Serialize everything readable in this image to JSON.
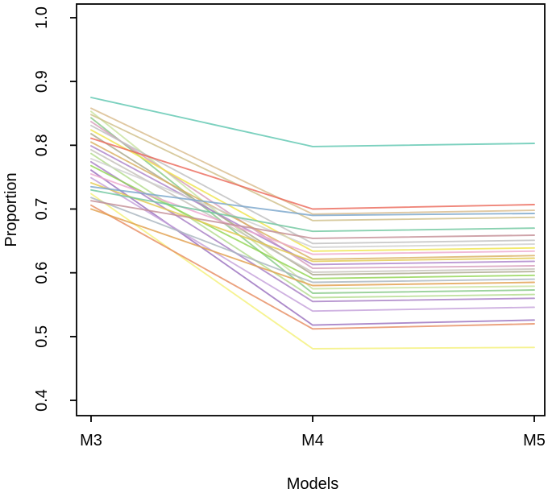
{
  "figure": {
    "background": "#ffffff",
    "axis_color": "#000000"
  },
  "chart_data": {
    "type": "line",
    "title": "",
    "xlabel": "Models",
    "ylabel": "Proportion",
    "categories": [
      "M3",
      "M4",
      "M5"
    ],
    "ylim": [
      0.4,
      1.0
    ],
    "yticks": [
      0.4,
      0.5,
      0.6,
      0.7,
      0.8,
      0.9,
      1.0
    ],
    "ytick_labels": [
      "0.4",
      "0.5",
      "0.6",
      "0.7",
      "0.8",
      "0.9",
      "1.0"
    ],
    "grid": false,
    "legend": "none",
    "series": [
      {
        "name": "line-teal",
        "color": "#5fc7b1",
        "values": [
          0.875,
          0.798,
          0.803
        ]
      },
      {
        "name": "line-tan",
        "color": "#d9bc8e",
        "values": [
          0.858,
          0.692,
          0.698
        ]
      },
      {
        "name": "line-palegreen",
        "color": "#c9e3a0",
        "values": [
          0.853,
          0.575,
          0.579
        ]
      },
      {
        "name": "line-khaki",
        "color": "#cfc08a",
        "values": [
          0.848,
          0.682,
          0.687
        ]
      },
      {
        "name": "line-green",
        "color": "#87c987",
        "values": [
          0.843,
          0.568,
          0.573
        ]
      },
      {
        "name": "line-mauvepink",
        "color": "#d79dbb",
        "values": [
          0.837,
          0.607,
          0.611
        ]
      },
      {
        "name": "line-gray",
        "color": "#bfbfbf",
        "values": [
          0.831,
          0.646,
          0.651
        ]
      },
      {
        "name": "line-yellow",
        "color": "#efe44d",
        "values": [
          0.824,
          0.634,
          0.639
        ]
      },
      {
        "name": "line-olivegray",
        "color": "#aba88c",
        "values": [
          0.818,
          0.597,
          0.602
        ]
      },
      {
        "name": "line-salmonred",
        "color": "#ec6a5c",
        "values": [
          0.811,
          0.7,
          0.707
        ]
      },
      {
        "name": "line-tangold",
        "color": "#d9b163",
        "values": [
          0.805,
          0.621,
          0.627
        ]
      },
      {
        "name": "line-purple",
        "color": "#ac84cb",
        "values": [
          0.799,
          0.613,
          0.618
        ]
      },
      {
        "name": "line-warmgray",
        "color": "#c6c2bb",
        "values": [
          0.793,
          0.601,
          0.606
        ]
      },
      {
        "name": "line-lightgreen",
        "color": "#b3dc8e",
        "values": [
          0.787,
          0.561,
          0.566
        ]
      },
      {
        "name": "line-lightgray",
        "color": "#cfcfcf",
        "values": [
          0.779,
          0.64,
          0.645
        ]
      },
      {
        "name": "line-purple2",
        "color": "#a77fc4",
        "values": [
          0.774,
          0.555,
          0.56
        ]
      },
      {
        "name": "line-brightgreen",
        "color": "#93d653",
        "values": [
          0.768,
          0.591,
          0.596
        ]
      },
      {
        "name": "line-violet",
        "color": "#9a70be",
        "values": [
          0.761,
          0.518,
          0.526
        ]
      },
      {
        "name": "line-pink",
        "color": "#eda8ce",
        "values": [
          0.755,
          0.629,
          0.634
        ]
      },
      {
        "name": "line-lavender",
        "color": "#c5a1db",
        "values": [
          0.749,
          0.54,
          0.546
        ]
      },
      {
        "name": "line-gold",
        "color": "#e3c94f",
        "values": [
          0.741,
          0.618,
          0.623
        ]
      },
      {
        "name": "line-steelblue",
        "color": "#7aa6cc",
        "values": [
          0.735,
          0.69,
          0.693
        ]
      },
      {
        "name": "line-seagreen",
        "color": "#6fc79f",
        "values": [
          0.73,
          0.665,
          0.67
        ]
      },
      {
        "name": "line-lightyellow",
        "color": "#f4f07a",
        "values": [
          0.724,
          0.481,
          0.483
        ]
      },
      {
        "name": "line-bluegray",
        "color": "#a9b6bf",
        "values": [
          0.718,
          0.585,
          0.59
        ]
      },
      {
        "name": "line-rosybrown",
        "color": "#c58f96",
        "values": [
          0.713,
          0.654,
          0.659
        ]
      },
      {
        "name": "line-salmonorange",
        "color": "#e78e63",
        "values": [
          0.706,
          0.512,
          0.52
        ]
      },
      {
        "name": "line-orange",
        "color": "#e2a04e",
        "values": [
          0.7,
          0.58,
          0.585
        ]
      }
    ]
  }
}
